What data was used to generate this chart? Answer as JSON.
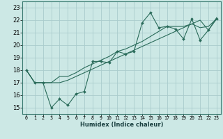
{
  "xlabel": "Humidex (Indice chaleur)",
  "ylabel": "",
  "bg_color": "#cce8e5",
  "grid_color": "#aacccc",
  "line_color": "#2a6b5a",
  "xlim": [
    -0.5,
    23.5
  ],
  "ylim": [
    14.5,
    23.5
  ],
  "xticks": [
    0,
    1,
    2,
    3,
    4,
    5,
    6,
    7,
    8,
    9,
    10,
    11,
    12,
    13,
    14,
    15,
    16,
    17,
    18,
    19,
    20,
    21,
    22,
    23
  ],
  "yticks": [
    15,
    16,
    17,
    18,
    19,
    20,
    21,
    22,
    23
  ],
  "series1_x": [
    0,
    1,
    2,
    3,
    4,
    5,
    6,
    7,
    8,
    9,
    10,
    11,
    12,
    13,
    14,
    15,
    16,
    17,
    18,
    19,
    20,
    21,
    22,
    23
  ],
  "series1_y": [
    18,
    17,
    17,
    15,
    15.7,
    15.2,
    16.1,
    16.3,
    18.7,
    18.7,
    18.6,
    19.5,
    19.3,
    19.5,
    21.8,
    22.6,
    21.4,
    21.5,
    21.3,
    20.5,
    22.1,
    20.4,
    21.2,
    22.1
  ],
  "series2_x": [
    0,
    1,
    2,
    3,
    4,
    5,
    6,
    7,
    8,
    9,
    10,
    11,
    12,
    13,
    14,
    15,
    16,
    17,
    18,
    19,
    20,
    21,
    22,
    23
  ],
  "series2_y": [
    18,
    17,
    17,
    17,
    17,
    17.2,
    17.5,
    17.8,
    18.1,
    18.4,
    18.7,
    19.0,
    19.3,
    19.6,
    19.9,
    20.2,
    20.5,
    20.8,
    21.1,
    21.4,
    21.7,
    21.4,
    21.5,
    22.1
  ],
  "series3_x": [
    0,
    1,
    2,
    3,
    4,
    5,
    6,
    7,
    8,
    9,
    10,
    11,
    12,
    13,
    14,
    15,
    16,
    17,
    18,
    19,
    20,
    21,
    22,
    23
  ],
  "series3_y": [
    18,
    17,
    17,
    17,
    17.5,
    17.5,
    17.8,
    18.2,
    18.5,
    18.8,
    19.1,
    19.5,
    19.7,
    20.0,
    20.3,
    20.7,
    21.1,
    21.5,
    21.5,
    21.5,
    21.7,
    22.0,
    21.2,
    22.2
  ]
}
